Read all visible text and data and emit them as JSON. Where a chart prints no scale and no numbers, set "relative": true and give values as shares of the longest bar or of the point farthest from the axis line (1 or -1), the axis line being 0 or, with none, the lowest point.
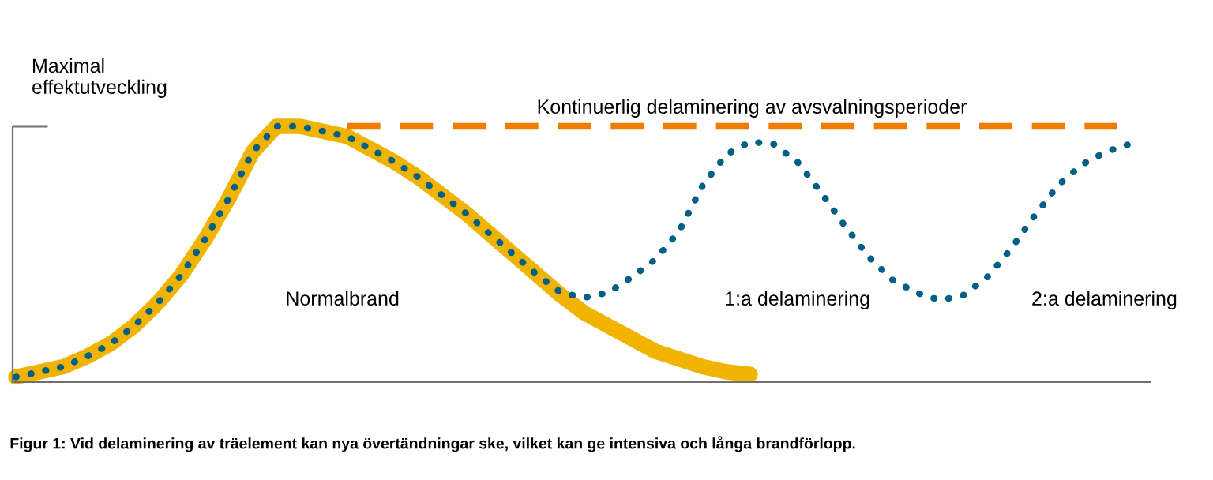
{
  "chart_data": {
    "type": "line",
    "relative": true,
    "ylabel": "Maximal\neffektutveckling",
    "categories": [
      null,
      null,
      null,
      null,
      null,
      null,
      null,
      null,
      null,
      null,
      null,
      null,
      null,
      null,
      null,
      null,
      null,
      null,
      null,
      null,
      null,
      null,
      null,
      null,
      null,
      null,
      null,
      null,
      null,
      null,
      null,
      null,
      null,
      null,
      null,
      null,
      null,
      null,
      null,
      null,
      null,
      null,
      null,
      null,
      null,
      null,
      null,
      null
    ],
    "series": [
      {
        "color": "#f0b400",
        "line_style": "solid",
        "values": [
          0.02,
          0.04,
          0.06,
          0.1,
          0.15,
          0.22,
          0.31,
          0.42,
          0.56,
          0.72,
          0.9,
          1.0,
          1.0,
          0.98,
          0.96,
          0.91,
          0.86,
          0.8,
          0.73,
          0.66,
          0.58,
          0.5,
          0.42,
          0.34,
          0.27,
          0.22,
          0.17,
          0.12,
          0.09,
          0.06,
          0.04,
          0.03,
          null,
          null,
          null,
          null,
          null,
          null,
          null,
          null,
          null,
          null,
          null,
          null,
          null,
          null,
          null,
          null
        ]
      },
      {
        "color": "#005f87",
        "line_style": "dotted",
        "values": [
          0.02,
          0.04,
          0.06,
          0.1,
          0.15,
          0.22,
          0.31,
          0.42,
          0.56,
          0.72,
          0.9,
          1.0,
          1.0,
          0.98,
          0.96,
          0.91,
          0.86,
          0.8,
          0.73,
          0.66,
          0.58,
          0.5,
          0.42,
          0.35,
          0.33,
          0.35,
          0.41,
          0.48,
          0.59,
          0.77,
          0.89,
          0.94,
          0.93,
          0.86,
          0.74,
          0.61,
          0.49,
          0.4,
          0.35,
          0.32,
          0.34,
          0.41,
          0.52,
          0.65,
          0.77,
          0.85,
          0.9,
          0.93
        ]
      },
      {
        "color": "#f07d00",
        "line_style": "dashed",
        "values": [
          null,
          null,
          null,
          null,
          null,
          null,
          null,
          null,
          null,
          null,
          null,
          null,
          null,
          null,
          1.0,
          1.0,
          1.0,
          1.0,
          1.0,
          1.0,
          1.0,
          1.0,
          1.0,
          1.0,
          1.0,
          1.0,
          1.0,
          1.0,
          1.0,
          1.0,
          1.0,
          1.0,
          1.0,
          1.0,
          1.0,
          1.0,
          1.0,
          1.0,
          1.0,
          1.0,
          1.0,
          1.0,
          1.0,
          1.0,
          1.0,
          1.0,
          1.0,
          1.0
        ]
      }
    ],
    "annotations": [
      "Kontinuerlig delaminering av avsvalningsperioder",
      "Normalbrand",
      "1:a delaminering",
      "2:a delaminering",
      "Figur 1: Vid delaminering av träelement kan nya övertändningar ske, vilket kan ge intensiva och långa brandförlopp."
    ]
  }
}
